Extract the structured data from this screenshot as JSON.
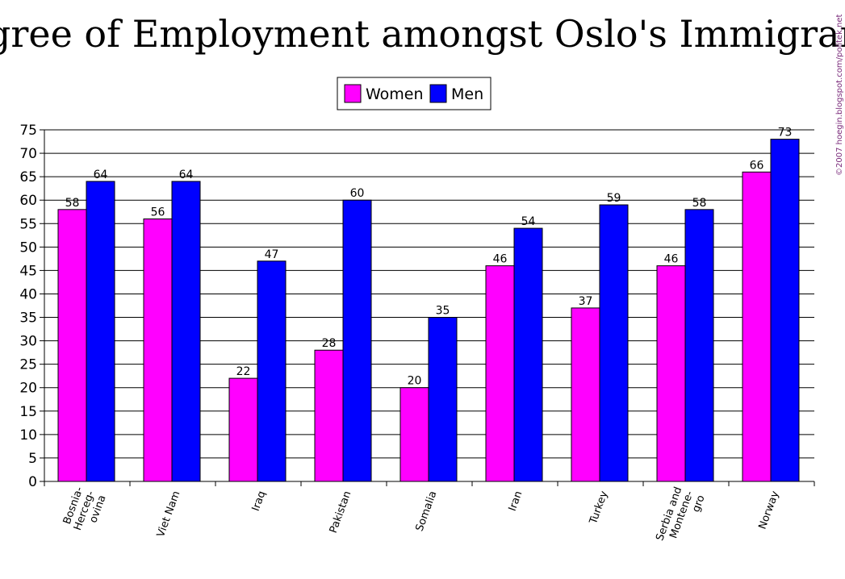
{
  "chart_data": {
    "type": "bar",
    "title": "Degree of Employment amongst Oslo's Immigrants",
    "credit": "©2007 hoegin.blogspot.com/politek.net",
    "categories": [
      [
        "Bosnia-",
        "Herceg-",
        "ovina"
      ],
      [
        "Viet Nam"
      ],
      [
        "Iraq"
      ],
      [
        "Pakistan"
      ],
      [
        "Somalia"
      ],
      [
        "Iran"
      ],
      [
        "Turkey"
      ],
      [
        "Serbia and",
        "Montene-",
        "gro"
      ],
      [
        "Norway"
      ]
    ],
    "series": [
      {
        "name": "Women",
        "color": "#ff00ff",
        "values": [
          58,
          56,
          22,
          28,
          20,
          46,
          37,
          46,
          66
        ]
      },
      {
        "name": "Men",
        "color": "#0000ff",
        "values": [
          64,
          64,
          47,
          60,
          35,
          54,
          59,
          58,
          73
        ]
      }
    ],
    "ylim": [
      0,
      75
    ],
    "ytick_step": 5,
    "grid": true,
    "legend_position": "top-center"
  }
}
